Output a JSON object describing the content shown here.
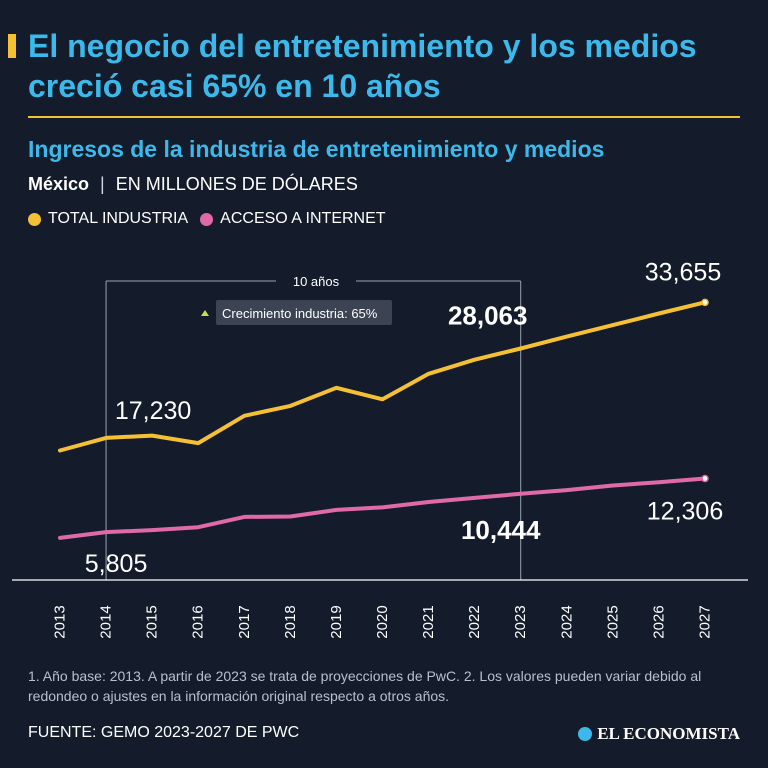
{
  "headline": "El negocio del entretenimiento y los medios creció casi 65% en 10 años",
  "subtitle": "Ingresos de la industria de entretenimiento y medios",
  "country": "México",
  "separator": "|",
  "unit": "EN MILLONES DE DÓLARES",
  "colors": {
    "accent": "#f5c033",
    "title": "#3cb9ea",
    "internet": "#e06aa8",
    "background": "#141c2b"
  },
  "chart_data": {
    "type": "line",
    "x": [
      "2013",
      "2014",
      "2015",
      "2016",
      "2017",
      "2018",
      "2019",
      "2020",
      "2021",
      "2022",
      "2023",
      "2024",
      "2025",
      "2026",
      "2027"
    ],
    "series": [
      {
        "name": "TOTAL INDUSTRIA",
        "color": "#f5c033",
        "values": [
          15700,
          17230,
          17500,
          16600,
          19900,
          21100,
          23300,
          21900,
          25000,
          26700,
          28063,
          29500,
          30900,
          32300,
          33655
        ]
      },
      {
        "name": "ACCESO A INTERNET",
        "color": "#e06aa8",
        "values": [
          5100,
          5805,
          6050,
          6400,
          7650,
          7700,
          8500,
          8800,
          9450,
          9950,
          10444,
          10900,
          11450,
          11850,
          12306
        ]
      }
    ],
    "ylim": [
      0,
      40000
    ],
    "value_labels": [
      {
        "series": 0,
        "index": 1,
        "text": "17,230",
        "bold": false
      },
      {
        "series": 0,
        "index": 10,
        "text": "28,063",
        "bold": true
      },
      {
        "series": 0,
        "index": 14,
        "text": "33,655",
        "bold": false
      },
      {
        "series": 1,
        "index": 1,
        "text": "5,805",
        "bold": false
      },
      {
        "series": 1,
        "index": 10,
        "text": "10,444",
        "bold": true
      },
      {
        "series": 1,
        "index": 14,
        "text": "12,306",
        "bold": false
      }
    ],
    "bracket": {
      "from_index": 1,
      "to_index": 10,
      "label": "10 años"
    },
    "growth_annotation": {
      "icon": "triangle-up-icon",
      "text": "Crecimiento industria: 65%"
    }
  },
  "footnote": "1. Año base: 2013. A partir de 2023 se trata de proyecciones de PwC. 2. Los valores pueden variar debido al redondeo o ajustes en la información original respecto a otros años.",
  "source": "FUENTE: GEMO 2023-2027 DE PWC",
  "brand": "EL ECONOMISTA"
}
